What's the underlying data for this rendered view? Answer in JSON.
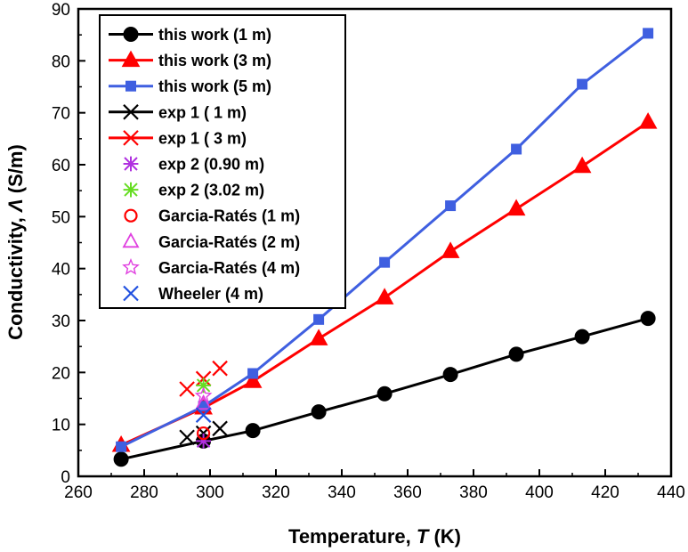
{
  "chart_data": {
    "type": "line",
    "xlabel_prefix": "Temperature, ",
    "xlabel_var": "T",
    "xlabel_suffix": " (K)",
    "ylabel_prefix": "Conductivity, ",
    "ylabel_var": "Λ",
    "ylabel_suffix": " (S/m)",
    "xlim": [
      260,
      440
    ],
    "ylim": [
      0,
      90
    ],
    "xticks": [
      260,
      280,
      300,
      320,
      340,
      360,
      380,
      400,
      420,
      440
    ],
    "yticks": [
      0,
      10,
      20,
      30,
      40,
      50,
      60,
      70,
      80,
      90
    ],
    "legend_position": "top-left",
    "series": [
      {
        "name": "this work (1 m)",
        "marker": "circle-filled",
        "color": "#000000",
        "line": true,
        "x": [
          273,
          298,
          313,
          333,
          353,
          373,
          393,
          413,
          433
        ],
        "y": [
          3.3,
          6.8,
          8.8,
          12.4,
          15.9,
          19.6,
          23.5,
          26.9,
          30.4
        ]
      },
      {
        "name": "this work (3 m)",
        "marker": "triangle-filled",
        "color": "#ff0000",
        "line": true,
        "x": [
          273,
          298,
          313,
          333,
          353,
          373,
          393,
          413,
          433
        ],
        "y": [
          6.0,
          13.2,
          18.3,
          26.5,
          34.4,
          43.3,
          51.5,
          59.7,
          68.2
        ]
      },
      {
        "name": "this work (5 m)",
        "marker": "square-filled",
        "color": "#3f5fe0",
        "line": true,
        "x": [
          273,
          298,
          313,
          333,
          353,
          373,
          393,
          413,
          433
        ],
        "y": [
          5.7,
          13.5,
          19.8,
          30.2,
          41.2,
          52.1,
          63.0,
          75.5,
          85.3
        ]
      },
      {
        "name": "exp 1 ( 1 m)",
        "marker": "x",
        "color": "#000000",
        "line": false,
        "x": [
          293,
          298,
          303
        ],
        "y": [
          7.5,
          8.3,
          9.2
        ]
      },
      {
        "name": "exp 1 ( 3 m)",
        "marker": "x",
        "color": "#ff0000",
        "line": false,
        "x": [
          293,
          298,
          303
        ],
        "y": [
          16.8,
          18.8,
          20.8
        ]
      },
      {
        "name": "exp 2 (0.90 m)",
        "marker": "asterisk",
        "color": "#b030e0",
        "line": false,
        "x": [
          298
        ],
        "y": [
          6.8
        ]
      },
      {
        "name": "exp 2 (3.02 m)",
        "marker": "asterisk",
        "color": "#66dd22",
        "line": false,
        "x": [
          298
        ],
        "y": [
          17.5
        ]
      },
      {
        "name": "Garcia-Ratés (1 m)",
        "marker": "circle-open",
        "color": "#ff0000",
        "line": false,
        "x": [
          298
        ],
        "y": [
          8.3
        ]
      },
      {
        "name": "Garcia-Ratés (2 m)",
        "marker": "triangle-open",
        "color": "#e040e0",
        "line": false,
        "x": [
          298
        ],
        "y": [
          14.0
        ]
      },
      {
        "name": "Garcia-Ratés (4 m)",
        "marker": "star-open",
        "color": "#e040e0",
        "line": false,
        "x": [
          298
        ],
        "y": [
          15.5
        ]
      },
      {
        "name": "Wheeler (4 m)",
        "marker": "x",
        "color": "#2050e0",
        "line": false,
        "x": [
          298
        ],
        "y": [
          11.8
        ]
      }
    ]
  }
}
